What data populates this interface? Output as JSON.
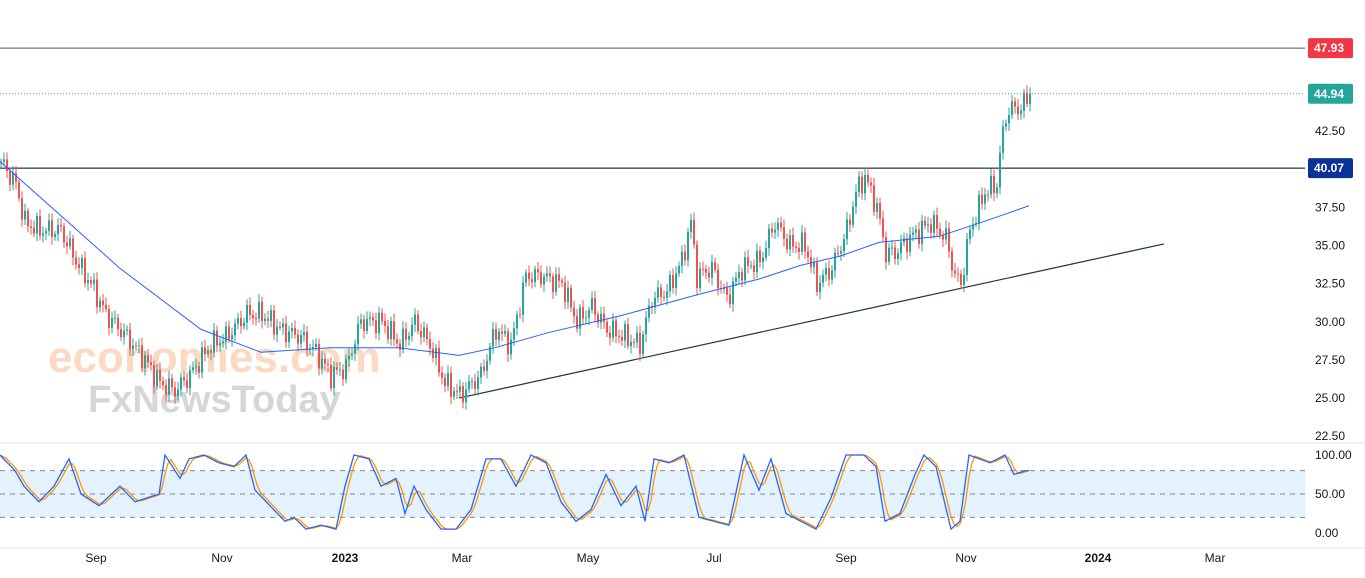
{
  "chart_data": {
    "type": "candlestick",
    "title": "",
    "price_axis": {
      "ticks": [
        "42.50",
        "37.50",
        "35.00",
        "32.50",
        "30.00",
        "27.50",
        "25.00",
        "22.50"
      ],
      "tick_values": [
        42.5,
        37.5,
        35,
        32.5,
        30,
        27.5,
        25,
        22.5
      ]
    },
    "time_axis": {
      "labels": [
        {
          "text": "Sep",
          "bar": 32
        },
        {
          "text": "Nov",
          "bar": 74
        },
        {
          "text": "2023",
          "bar": 115,
          "bold": true
        },
        {
          "text": "Mar",
          "bar": 154
        },
        {
          "text": "May",
          "bar": 196
        },
        {
          "text": "Jul",
          "bar": 238
        },
        {
          "text": "Sep",
          "bar": 282
        },
        {
          "text": "Nov",
          "bar": 322
        },
        {
          "text": "2024",
          "bar": 366,
          "bold": true
        },
        {
          "text": "Mar",
          "bar": 405
        }
      ]
    },
    "price_path": [
      [
        0,
        40.5
      ],
      [
        5,
        39
      ],
      [
        8,
        36.5
      ],
      [
        13,
        36
      ],
      [
        20,
        36
      ],
      [
        25,
        34
      ],
      [
        30,
        32.5
      ],
      [
        35,
        30.5
      ],
      [
        42,
        29
      ],
      [
        48,
        27.5
      ],
      [
        53,
        26
      ],
      [
        58,
        25.5
      ],
      [
        63,
        26.5
      ],
      [
        70,
        28.5
      ],
      [
        75,
        29
      ],
      [
        82,
        30.5
      ],
      [
        87,
        30.5
      ],
      [
        93,
        29.5
      ],
      [
        100,
        29
      ],
      [
        105,
        28
      ],
      [
        110,
        26.5
      ],
      [
        115,
        27
      ],
      [
        120,
        30
      ],
      [
        127,
        30
      ],
      [
        133,
        28.5
      ],
      [
        138,
        30
      ],
      [
        143,
        28.5
      ],
      [
        148,
        26
      ],
      [
        153,
        25.2
      ],
      [
        160,
        26.5
      ],
      [
        165,
        29.5
      ],
      [
        170,
        28.5
      ],
      [
        175,
        33
      ],
      [
        180,
        33
      ],
      [
        187,
        32.5
      ],
      [
        192,
        30
      ],
      [
        197,
        31
      ],
      [
        202,
        29.5
      ],
      [
        208,
        29
      ],
      [
        213,
        28.5
      ],
      [
        217,
        31.5
      ],
      [
        222,
        32
      ],
      [
        227,
        34
      ],
      [
        230,
        36.5
      ],
      [
        232,
        33
      ],
      [
        237,
        33.5
      ],
      [
        242,
        31.5
      ],
      [
        247,
        33.5
      ],
      [
        253,
        34
      ],
      [
        258,
        36.5
      ],
      [
        263,
        35
      ],
      [
        268,
        35
      ],
      [
        272,
        32.5
      ],
      [
        277,
        33.5
      ],
      [
        282,
        36
      ],
      [
        285,
        38.5
      ],
      [
        288,
        39.5
      ],
      [
        292,
        37.5
      ],
      [
        295,
        34.5
      ],
      [
        298,
        34.5
      ],
      [
        303,
        35.5
      ],
      [
        310,
        36.5
      ],
      [
        315,
        35.5
      ],
      [
        318,
        33
      ],
      [
        320,
        32.5
      ],
      [
        323,
        36
      ],
      [
        328,
        38.5
      ],
      [
        332,
        39
      ],
      [
        333,
        41
      ],
      [
        335,
        43.5
      ],
      [
        337,
        44
      ],
      [
        340,
        44
      ],
      [
        343,
        44.94
      ]
    ],
    "moving_average": [
      [
        0,
        40.5
      ],
      [
        20,
        37
      ],
      [
        40,
        33.5
      ],
      [
        67,
        29.5
      ],
      [
        87,
        28
      ],
      [
        110,
        28.3
      ],
      [
        133,
        28.3
      ],
      [
        153,
        27.8
      ],
      [
        165,
        28.3
      ],
      [
        183,
        29.3
      ],
      [
        207,
        30.4
      ],
      [
        233,
        31.8
      ],
      [
        253,
        32.8
      ],
      [
        267,
        33.7
      ],
      [
        280,
        34.3
      ],
      [
        293,
        35.2
      ],
      [
        313,
        35.6
      ],
      [
        327,
        36.5
      ],
      [
        343,
        37.6
      ]
    ],
    "trendline": {
      "from": [
        153,
        25
      ],
      "to": [
        388,
        35.1
      ]
    },
    "levels": [
      {
        "value": 47.93,
        "label": "47.93",
        "color": "#f23645"
      },
      {
        "value": 40.07,
        "label": "40.07",
        "color": "#0c3299"
      }
    ],
    "last_price": {
      "value": 44.94,
      "label": "44.94",
      "color": "#26a69a"
    },
    "stochastic": {
      "ticks": [
        "100.00",
        "50.00",
        "0.00"
      ],
      "band": [
        20,
        80
      ],
      "k": [
        [
          0,
          100
        ],
        [
          5,
          80
        ],
        [
          8,
          60
        ],
        [
          13,
          40
        ],
        [
          18,
          60
        ],
        [
          23,
          95
        ],
        [
          27,
          50
        ],
        [
          33,
          35
        ],
        [
          40,
          60
        ],
        [
          45,
          40
        ],
        [
          53,
          50
        ],
        [
          55,
          100
        ],
        [
          60,
          70
        ],
        [
          63,
          95
        ],
        [
          68,
          100
        ],
        [
          73,
          90
        ],
        [
          78,
          85
        ],
        [
          82,
          100
        ],
        [
          85,
          55
        ],
        [
          90,
          35
        ],
        [
          95,
          15
        ],
        [
          98,
          20
        ],
        [
          102,
          5
        ],
        [
          107,
          10
        ],
        [
          112,
          5
        ],
        [
          115,
          60
        ],
        [
          118,
          100
        ],
        [
          123,
          95
        ],
        [
          127,
          60
        ],
        [
          132,
          70
        ],
        [
          135,
          25
        ],
        [
          138,
          60
        ],
        [
          142,
          30
        ],
        [
          147,
          5
        ],
        [
          152,
          5
        ],
        [
          157,
          30
        ],
        [
          162,
          95
        ],
        [
          167,
          95
        ],
        [
          172,
          60
        ],
        [
          177,
          100
        ],
        [
          182,
          90
        ],
        [
          187,
          40
        ],
        [
          192,
          15
        ],
        [
          197,
          30
        ],
        [
          202,
          75
        ],
        [
          207,
          35
        ],
        [
          212,
          60
        ],
        [
          215,
          15
        ],
        [
          218,
          95
        ],
        [
          223,
          90
        ],
        [
          228,
          100
        ],
        [
          233,
          20
        ],
        [
          238,
          15
        ],
        [
          243,
          10
        ],
        [
          248,
          100
        ],
        [
          253,
          55
        ],
        [
          257,
          95
        ],
        [
          262,
          25
        ],
        [
          267,
          15
        ],
        [
          272,
          5
        ],
        [
          277,
          45
        ],
        [
          282,
          100
        ],
        [
          288,
          100
        ],
        [
          292,
          85
        ],
        [
          295,
          15
        ],
        [
          300,
          25
        ],
        [
          305,
          75
        ],
        [
          308,
          100
        ],
        [
          312,
          85
        ],
        [
          317,
          5
        ],
        [
          320,
          15
        ],
        [
          323,
          100
        ],
        [
          330,
          90
        ],
        [
          335,
          100
        ],
        [
          338,
          75
        ],
        [
          342,
          80
        ]
      ]
    },
    "watermark": {
      "line1": "economies.com",
      "line2": "FxNewsToday"
    },
    "colors": {
      "up": "#26a69a",
      "down": "#ef5350",
      "ma": "#2962ff",
      "k": "#2962ff",
      "d": "#ff9800",
      "band": "#e3f2fd"
    }
  }
}
